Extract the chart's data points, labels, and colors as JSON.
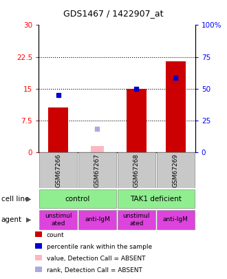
{
  "title": "GDS1467 / 1422907_at",
  "samples": [
    "GSM67266",
    "GSM67267",
    "GSM67268",
    "GSM67269"
  ],
  "red_bars": [
    10.5,
    0,
    15.0,
    21.5
  ],
  "blue_markers": [
    13.5,
    0,
    15.0,
    17.5
  ],
  "pink_bars": [
    0,
    1.5,
    0,
    0
  ],
  "lavender_markers": [
    0,
    5.5,
    0,
    0
  ],
  "ylim_left": [
    0,
    30
  ],
  "ylim_right": [
    0,
    100
  ],
  "yticks_left": [
    0,
    7.5,
    15,
    22.5,
    30
  ],
  "yticks_right": [
    0,
    25,
    50,
    75,
    100
  ],
  "ytick_labels_left": [
    "0",
    "7.5",
    "15",
    "22.5",
    "30"
  ],
  "ytick_labels_right": [
    "0",
    "25",
    "50",
    "75",
    "100%"
  ],
  "hlines": [
    7.5,
    15,
    22.5
  ],
  "cell_line_labels": [
    "control",
    "TAK1 deficient"
  ],
  "cell_line_spans": [
    [
      0,
      2
    ],
    [
      2,
      4
    ]
  ],
  "agent_labels": [
    "unstimul\nated",
    "anti-IgM",
    "unstimul\nated",
    "anti-IgM"
  ],
  "cell_line_color": "#90EE90",
  "agent_color": "#DD44DD",
  "sample_box_color": "#C8C8C8",
  "bar_width": 0.5,
  "legend_items": [
    {
      "color": "#CC0000",
      "label": "count"
    },
    {
      "color": "#0000CC",
      "label": "percentile rank within the sample"
    },
    {
      "color": "#FFB6C1",
      "label": "value, Detection Call = ABSENT"
    },
    {
      "color": "#AAAADD",
      "label": "rank, Detection Call = ABSENT"
    }
  ]
}
